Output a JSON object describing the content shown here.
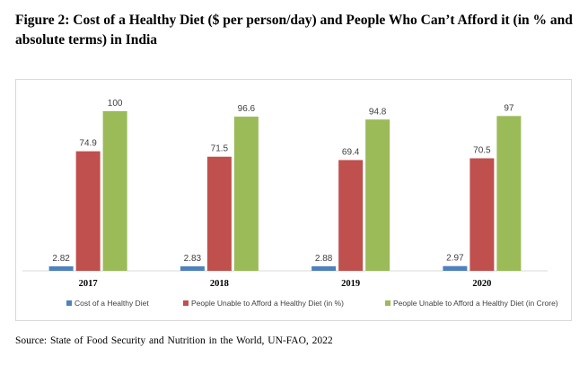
{
  "title": "Figure 2: Cost of a Healthy Diet ($ per person/day) and People Who Can’t Afford it (in % and absolute terms) in India",
  "source": "Source:  State of Food Security and Nutrition in the World, UN-FAO, 2022",
  "chart_data": {
    "type": "bar",
    "categories": [
      "2017",
      "2018",
      "2019",
      "2020"
    ],
    "series": [
      {
        "name": "Cost of a Healthy Diet",
        "values": [
          2.82,
          2.83,
          2.88,
          2.97
        ],
        "color": "#4f81bd"
      },
      {
        "name": "People Unable to Afford a Healthy Diet (in %)",
        "values": [
          74.9,
          71.5,
          69.4,
          70.5
        ],
        "color": "#c0504d"
      },
      {
        "name": "People Unable to Afford a Healthy Diet (in Crore)",
        "values": [
          100,
          96.6,
          94.8,
          97
        ],
        "color": "#9bbb59"
      }
    ],
    "ylim": [
      0,
      100
    ],
    "grid": false,
    "legend": "bottom"
  }
}
